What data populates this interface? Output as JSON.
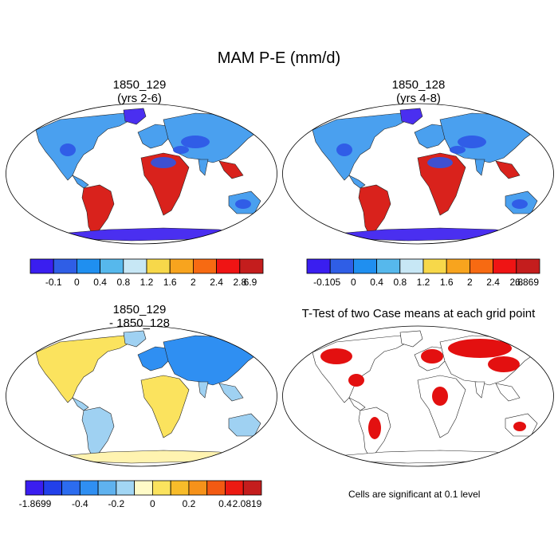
{
  "title": "MAM P-E (mm/d)",
  "panels": [
    {
      "id": "p1",
      "title_lines": [
        "1850_129",
        "(yrs 2-6)"
      ],
      "colorbar": {
        "colors": [
          "#3a1ef0",
          "#2f5ee6",
          "#1f8ff0",
          "#56b8ec",
          "#c7e7f5",
          "#f7d84a",
          "#f8a41e",
          "#f76a12",
          "#ef1414",
          "#c41d1d"
        ],
        "labels": [
          "-0.1",
          "0",
          "0.4",
          "0.8",
          "1.2",
          "1.6",
          "2",
          "2.4",
          "2.8",
          "6.9"
        ]
      }
    },
    {
      "id": "p2",
      "title_lines": [
        "1850_128",
        "(yrs 4-8)"
      ],
      "colorbar": {
        "colors": [
          "#3a1ef0",
          "#2f5ee6",
          "#1f8ff0",
          "#56b8ec",
          "#c7e7f5",
          "#f7d84a",
          "#f8a41e",
          "#f76a12",
          "#ef1414",
          "#c41d1d"
        ],
        "labels": [
          "-0.105",
          "0",
          "0.4",
          "0.8",
          "1.2",
          "1.6",
          "2",
          "2.4",
          "2.8",
          "6.869"
        ]
      }
    },
    {
      "id": "p3",
      "title_lines": [
        "1850_129",
        "- 1850_128"
      ],
      "colorbar": {
        "colors": [
          "#3a1ef0",
          "#2240ea",
          "#2c6cef",
          "#2f8ff2",
          "#5fb2ef",
          "#a2d6f4",
          "#fffbc8",
          "#fbe35e",
          "#f8bc2a",
          "#f6921a",
          "#f35a12",
          "#ec1a12",
          "#c41d1d"
        ],
        "labels": [
          "-1.8699",
          "",
          "-0.4",
          "",
          "-0.2",
          "",
          "0",
          "",
          "0.2",
          "",
          "0.4",
          "",
          "2.0819"
        ]
      }
    },
    {
      "id": "p4",
      "title_lines": [
        "T-Test of two Case means at each grid point"
      ],
      "note": "Cells are significant at 0.1 level"
    }
  ],
  "map_palette": {
    "ocean": "#ffffff",
    "antarctica_cold": "#4a2ff0",
    "land_default_mean": "#4aa0ef",
    "desert": "#2e55e6",
    "wet": "#d9221c",
    "diff_pos": "#fbe35e",
    "diff_neg": "#2f8ff2",
    "ttest_sig": "#e31010"
  }
}
